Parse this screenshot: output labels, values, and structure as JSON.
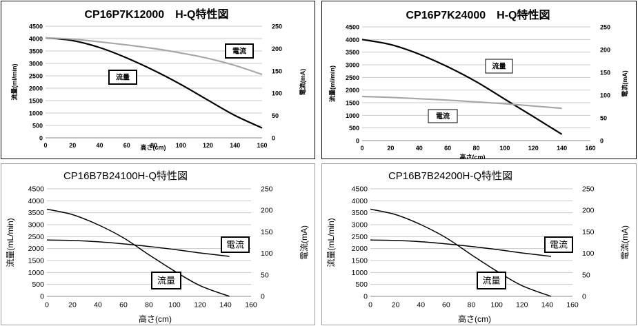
{
  "chart_data": [
    {
      "type": "line",
      "title": "CP16P7K12000　H-Q特性図",
      "xlabel": "高さ(cm)",
      "ylabel": "流量(ml/min)",
      "y2label": "電流(mA)",
      "xlim": [
        0,
        160
      ],
      "ylim": [
        0,
        4500
      ],
      "y2lim": [
        0,
        250
      ],
      "x_ticks": [
        "0",
        "20",
        "40",
        "60",
        "80",
        "100",
        "120",
        "140",
        "160"
      ],
      "y_ticks": [
        "0",
        "500",
        "1000",
        "1500",
        "2000",
        "2500",
        "3000",
        "3500",
        "4000",
        "4500"
      ],
      "y2_ticks": [
        "0",
        "50",
        "100",
        "150",
        "200",
        "250"
      ],
      "grid": true,
      "series": [
        {
          "name": "流量",
          "axis": "left",
          "color": "#000000",
          "x": [
            0,
            20,
            40,
            60,
            80,
            100,
            120,
            140,
            160
          ],
          "values": [
            4030,
            3920,
            3640,
            3220,
            2720,
            2150,
            1520,
            900,
            400
          ]
        },
        {
          "name": "電流",
          "axis": "right",
          "color": "#a6a6a6",
          "x": [
            0,
            20,
            40,
            60,
            80,
            100,
            120,
            140,
            160
          ],
          "values": [
            224,
            221,
            215,
            208,
            200,
            190,
            178,
            162,
            142
          ]
        }
      ]
    },
    {
      "type": "line",
      "title": "CP16P7K24000　H-Q特性図",
      "xlabel": "高さ(cm)",
      "ylabel": "流量(ml/min)",
      "y2label": "電流(mA)",
      "xlim": [
        0,
        160
      ],
      "ylim": [
        0,
        4500
      ],
      "y2lim": [
        0,
        250
      ],
      "x_ticks": [
        "0",
        "20",
        "40",
        "60",
        "80",
        "100",
        "120",
        "140",
        "160"
      ],
      "y_ticks": [
        "0",
        "500",
        "1000",
        "1500",
        "2000",
        "2500",
        "3000",
        "3500",
        "4000",
        "4500"
      ],
      "y2_ticks": [
        "0",
        "50",
        "100",
        "150",
        "200",
        "250"
      ],
      "grid": true,
      "series": [
        {
          "name": "流量",
          "axis": "left",
          "color": "#000000",
          "x": [
            0,
            20,
            40,
            60,
            80,
            100,
            120,
            140
          ],
          "values": [
            4000,
            3800,
            3420,
            2920,
            2330,
            1640,
            950,
            250
          ]
        },
        {
          "name": "電流",
          "axis": "right",
          "color": "#a6a6a6",
          "x": [
            0,
            20,
            40,
            60,
            80,
            100,
            120,
            140
          ],
          "values": [
            97,
            95,
            92,
            89,
            85,
            81,
            76,
            71
          ]
        }
      ]
    },
    {
      "type": "line",
      "title": "CP16B7B24100H-Q特性図",
      "xlabel": "高さ(cm)",
      "ylabel": "流量(mL/min)",
      "y2label": "電流(mA)",
      "xlim": [
        0,
        160
      ],
      "ylim": [
        0,
        4500
      ],
      "y2lim": [
        0,
        250
      ],
      "x_ticks": [
        "0",
        "20",
        "40",
        "60",
        "80",
        "100",
        "120",
        "140",
        "160"
      ],
      "y_ticks": [
        "0",
        "500",
        "1000",
        "1500",
        "2000",
        "2500",
        "3000",
        "3500",
        "4000",
        "4500"
      ],
      "y2_ticks": [
        "0",
        "50",
        "100",
        "150",
        "200",
        "250"
      ],
      "grid": true,
      "series": [
        {
          "name": "流量",
          "axis": "left",
          "color": "#000000",
          "x": [
            0,
            20,
            40,
            60,
            80,
            100,
            120,
            143
          ],
          "values": [
            3650,
            3420,
            3000,
            2450,
            1740,
            1060,
            450,
            0
          ]
        },
        {
          "name": "電流",
          "axis": "right",
          "color": "#000000",
          "x": [
            0,
            20,
            40,
            60,
            80,
            100,
            120,
            143
          ],
          "values": [
            131,
            130,
            127,
            122,
            116,
            109,
            101,
            93
          ]
        }
      ]
    },
    {
      "type": "line",
      "title": "CP16B7B24200H-Q特性図",
      "xlabel": "高さ(cm)",
      "ylabel": "流量(mL/min)",
      "y2label": "電流(mA)",
      "xlim": [
        0,
        160
      ],
      "ylim": [
        0,
        4500
      ],
      "y2lim": [
        0,
        250
      ],
      "x_ticks": [
        "0",
        "20",
        "40",
        "60",
        "80",
        "100",
        "120",
        "140",
        "160"
      ],
      "y_ticks": [
        "0",
        "500",
        "1000",
        "1500",
        "2000",
        "2500",
        "3000",
        "3500",
        "4000",
        "4500"
      ],
      "y2_ticks": [
        "0",
        "50",
        "100",
        "150",
        "200",
        "250"
      ],
      "grid": true,
      "series": [
        {
          "name": "流量",
          "axis": "left",
          "color": "#000000",
          "x": [
            0,
            20,
            40,
            60,
            80,
            100,
            120,
            143
          ],
          "values": [
            3650,
            3420,
            3000,
            2450,
            1740,
            1060,
            450,
            0
          ]
        },
        {
          "name": "電流",
          "axis": "right",
          "color": "#000000",
          "x": [
            0,
            20,
            40,
            60,
            80,
            100,
            120,
            143
          ],
          "values": [
            131,
            130,
            127,
            122,
            116,
            109,
            101,
            93
          ]
        }
      ]
    }
  ]
}
